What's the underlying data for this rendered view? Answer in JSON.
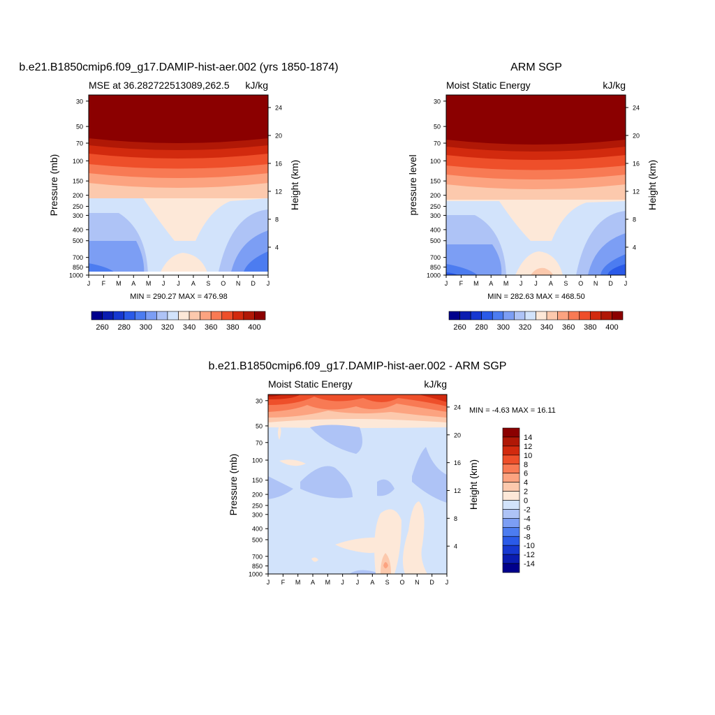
{
  "chart_data": [
    {
      "type": "heatmap",
      "title": "b.e21.B1850cmip6.f09_g17.DAMIP-hist-aer.002 (yrs 1850-1874)",
      "left_label": "MSE at 36.282722513089,262.5",
      "units": "kJ/kg",
      "ylabel": "Pressure (mb)",
      "ylabel_right": "Height (km)",
      "stats": "MIN = 290.27 MAX = 476.98",
      "months": [
        "J",
        "F",
        "M",
        "A",
        "M",
        "J",
        "J",
        "A",
        "S",
        "O",
        "N",
        "D",
        "J"
      ],
      "pressure_ticks": [
        "30",
        "50",
        "70",
        "100",
        "150",
        "200",
        "250",
        "300",
        "400",
        "500",
        "700",
        "850",
        "1000"
      ],
      "height_ticks": [
        "4",
        "8",
        "12",
        "16",
        "20",
        "24"
      ]
    },
    {
      "type": "heatmap",
      "title": "ARM SGP",
      "left_label": "Moist Static Energy",
      "units": "kJ/kg",
      "ylabel": "pressure level",
      "ylabel_right": "Height (km)",
      "stats": "MIN = 282.63 MAX = 468.50",
      "months": [
        "J",
        "F",
        "M",
        "A",
        "M",
        "J",
        "J",
        "A",
        "S",
        "O",
        "N",
        "D",
        "J"
      ],
      "pressure_ticks": [
        "30",
        "50",
        "70",
        "100",
        "150",
        "200",
        "250",
        "300",
        "400",
        "500",
        "700",
        "850",
        "1000"
      ],
      "height_ticks": [
        "4",
        "8",
        "12",
        "16",
        "20",
        "24"
      ]
    },
    {
      "type": "heatmap",
      "title": "b.e21.B1850cmip6.f09_g17.DAMIP-hist-aer.002 - ARM SGP",
      "left_label": "Moist Static Energy",
      "units": "kJ/kg",
      "ylabel": "Pressure (mb)",
      "ylabel_right": "Height (km)",
      "stats": "MIN =  -4.63 MAX =  16.11",
      "months": [
        "J",
        "F",
        "M",
        "A",
        "M",
        "J",
        "J",
        "A",
        "S",
        "O",
        "N",
        "D",
        "J"
      ],
      "pressure_ticks": [
        "30",
        "50",
        "70",
        "100",
        "150",
        "200",
        "250",
        "300",
        "400",
        "500",
        "700",
        "850",
        "1000"
      ],
      "height_ticks": [
        "4",
        "8",
        "12",
        "16",
        "20",
        "24"
      ]
    }
  ],
  "colorbar_abs": {
    "labels": [
      "260",
      "280",
      "300",
      "320",
      "340",
      "360",
      "380",
      "400"
    ],
    "colors": [
      "#00008c",
      "#0a1cb0",
      "#1638d0",
      "#2a5ae8",
      "#4c7cf0",
      "#7c9ef4",
      "#aec3f6",
      "#d2e3fb",
      "#fde8d8",
      "#fcc9ad",
      "#fca380",
      "#f87a54",
      "#ee4f2a",
      "#d22a0e",
      "#b01806",
      "#8b0000"
    ]
  },
  "colorbar_diff": {
    "labels": [
      "14",
      "12",
      "10",
      "8",
      "6",
      "4",
      "2",
      "0",
      "-2",
      "-4",
      "-6",
      "-8",
      "-10",
      "-12",
      "-14"
    ],
    "colors": [
      "#8b0000",
      "#b01806",
      "#d22a0e",
      "#ee4f2a",
      "#f87a54",
      "#fca380",
      "#fcc9ad",
      "#fde8d8",
      "#d2e3fb",
      "#aec3f6",
      "#7c9ef4",
      "#4c7cf0",
      "#2a5ae8",
      "#1638d0",
      "#0a1cb0",
      "#00008c"
    ]
  }
}
